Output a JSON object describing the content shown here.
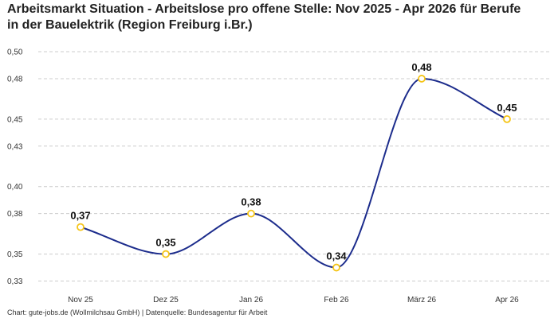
{
  "chart_data": {
    "type": "line",
    "title": "Arbeitsmarkt Situation - Arbeitslose pro offene Stelle: Nov 2025 - Apr 2026 für Berufe in der Bauelektrik (Region Freiburg i.Br.)",
    "categories": [
      "Nov 25",
      "Dez 25",
      "Jan 26",
      "Feb 26",
      "März 26",
      "Apr 26"
    ],
    "series": [
      {
        "values": [
          0.37,
          0.35,
          0.38,
          0.34,
          0.48,
          0.45
        ]
      }
    ],
    "data_labels": [
      "0,37",
      "0,35",
      "0,38",
      "0,34",
      "0,48",
      "0,45"
    ],
    "yticks": [
      0.33,
      0.35,
      0.38,
      0.4,
      0.43,
      0.45,
      0.48,
      0.5
    ],
    "ytick_labels": [
      "0,33",
      "0,35",
      "0,38",
      "0,40",
      "0,43",
      "0,45",
      "0,48",
      "0,50"
    ],
    "ylim": [
      0.325,
      0.5
    ],
    "xlabel": "",
    "ylabel": "",
    "grid": true,
    "legend": "none",
    "line_color": "#1c2c8c",
    "marker_color": "#f5c518",
    "footer": "Chart: gute-jobs.de (Wollmilchsau GmbH) | Datenquelle: Bundesagentur für Arbeit"
  }
}
